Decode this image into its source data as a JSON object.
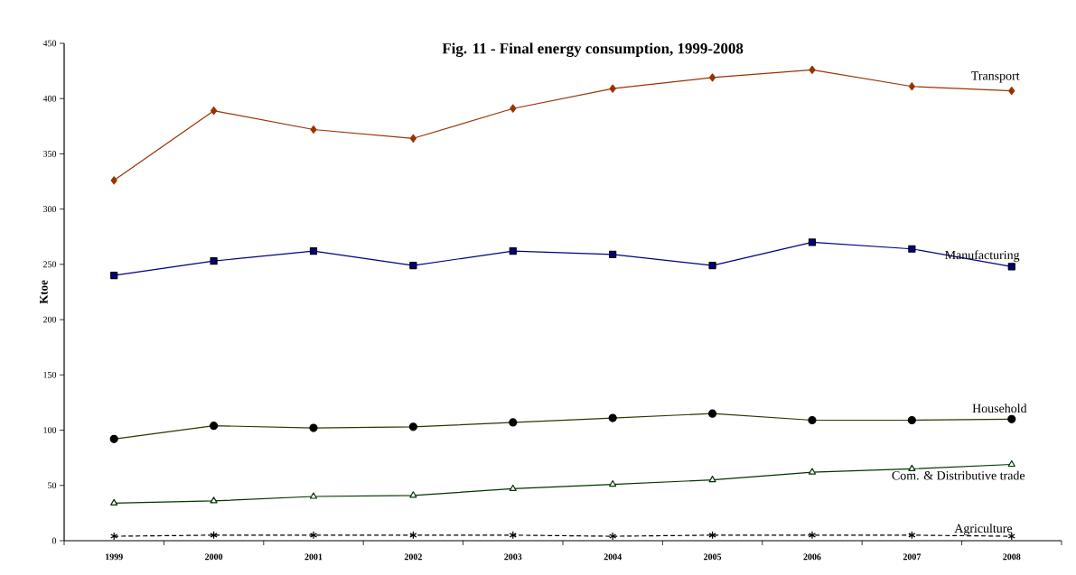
{
  "chart_data": {
    "type": "line",
    "title": "Fig. 11 - Final energy consumption, 1999-2008",
    "ylabel": "Ktoe",
    "categories": [
      "1999",
      "2000",
      "2001",
      "2002",
      "2003",
      "2004",
      "2005",
      "2006",
      "2007",
      "2008"
    ],
    "ylim": [
      0,
      450
    ],
    "yticks": [
      0,
      50,
      100,
      150,
      200,
      250,
      300,
      350,
      400,
      450
    ],
    "grid": false,
    "legend": false,
    "series": [
      {
        "name": "Transport",
        "color": "#993300",
        "marker": "diamond",
        "line_style": "solid",
        "values": [
          326,
          389,
          372,
          364,
          391,
          409,
          419,
          426,
          411,
          407
        ]
      },
      {
        "name": "Manufacturing",
        "color": "#000080",
        "marker": "square",
        "line_style": "solid",
        "values": [
          240,
          253,
          262,
          249,
          262,
          259,
          249,
          270,
          264,
          248
        ]
      },
      {
        "name": "Household",
        "color": "#333300",
        "marker": "circle",
        "line_style": "solid",
        "values": [
          92,
          104,
          102,
          103,
          107,
          111,
          115,
          109,
          109,
          110
        ]
      },
      {
        "name": "Com. & Distributive trade",
        "color": "#003300",
        "marker": "triangle",
        "line_style": "solid",
        "values": [
          34,
          36,
          40,
          41,
          47,
          51,
          55,
          62,
          65,
          69
        ]
      },
      {
        "name": "Agriculture",
        "color": "#000000",
        "marker": "cross",
        "line_style": "dashed",
        "values": [
          4,
          5,
          5,
          5,
          5,
          4,
          5,
          5,
          5,
          4
        ]
      }
    ]
  }
}
